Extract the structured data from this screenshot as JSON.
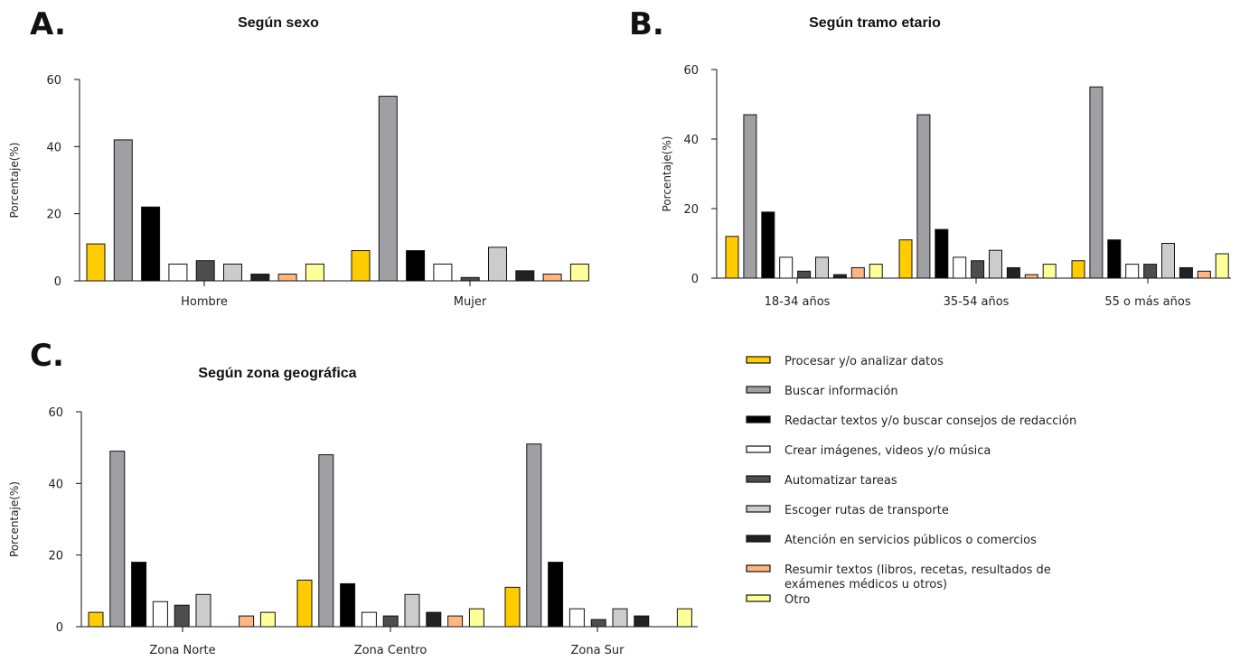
{
  "colors": {
    "Procesar y/o analizar datos": "#FFCC00",
    "Buscar información": "#A0A0A4",
    "Redactar textos y/o buscar consejos de redacción": "#000000",
    "Crear imágenes, videos y/o música": "#FFFFFF",
    "Automatizar tareas": "#4D4D4D",
    "Escoger rutas de transporte": "#CCCCCC",
    "Atención en servicios públicos o comercios": "#222222",
    "Resumir textos (libros, recetas, resultados de exámenes médicos u otros)": "#FFB680",
    "Otro": "#FFFF99"
  },
  "legend": {
    "items": [
      {
        "lines": [
          "Procesar y/o analizar datos"
        ]
      },
      {
        "lines": [
          "Buscar información"
        ]
      },
      {
        "lines": [
          "Redactar textos y/o buscar consejos de redacción"
        ]
      },
      {
        "lines": [
          "Crear imágenes, videos y/o música"
        ]
      },
      {
        "lines": [
          "Automatizar tareas"
        ]
      },
      {
        "lines": [
          "Escoger rutas de transporte"
        ]
      },
      {
        "lines": [
          "Atención en servicios públicos o comercios"
        ]
      },
      {
        "lines": [
          "Resumir textos (libros, recetas, resultados de",
          "exámenes médicos u otros)"
        ]
      },
      {
        "lines": [
          "Otro"
        ]
      }
    ]
  },
  "chart_data": [
    {
      "panel": "A.",
      "type": "bar",
      "title": "Según sexo",
      "ylabel": "Porcentaje(%)",
      "ylim": [
        0,
        60
      ],
      "yticks": [
        0,
        20,
        40,
        60
      ],
      "categories": [
        "Hombre",
        "Mujer"
      ],
      "series": [
        {
          "name": "Procesar y/o analizar datos",
          "values": [
            11,
            9
          ]
        },
        {
          "name": "Buscar información",
          "values": [
            42,
            55
          ]
        },
        {
          "name": "Redactar textos y/o buscar consejos de redacción",
          "values": [
            22,
            9
          ]
        },
        {
          "name": "Crear imágenes, videos y/o música",
          "values": [
            5,
            5
          ]
        },
        {
          "name": "Automatizar tareas",
          "values": [
            6,
            1
          ]
        },
        {
          "name": "Escoger rutas de transporte",
          "values": [
            5,
            10
          ]
        },
        {
          "name": "Atención en servicios públicos o comercios",
          "values": [
            2,
            3
          ]
        },
        {
          "name": "Resumir textos (libros, recetas, resultados de exámenes médicos u otros)",
          "values": [
            2,
            2
          ]
        },
        {
          "name": "Otro",
          "values": [
            5,
            5
          ]
        }
      ]
    },
    {
      "panel": "B.",
      "type": "bar",
      "title": "Según tramo etario",
      "ylabel": "Porcentaje(%)",
      "ylim": [
        0,
        60
      ],
      "yticks": [
        0,
        20,
        40,
        60
      ],
      "categories": [
        "18-34 años",
        "35-54 años",
        "55 o más años"
      ],
      "series": [
        {
          "name": "Procesar y/o analizar datos",
          "values": [
            12,
            11,
            5
          ]
        },
        {
          "name": "Buscar información",
          "values": [
            47,
            47,
            55
          ]
        },
        {
          "name": "Redactar textos y/o buscar consejos de redacción",
          "values": [
            19,
            14,
            11
          ]
        },
        {
          "name": "Crear imágenes, videos y/o música",
          "values": [
            6,
            6,
            4
          ]
        },
        {
          "name": "Automatizar tareas",
          "values": [
            2,
            5,
            4
          ]
        },
        {
          "name": "Escoger rutas de transporte",
          "values": [
            6,
            8,
            10
          ]
        },
        {
          "name": "Atención en servicios públicos o comercios",
          "values": [
            1,
            3,
            3
          ]
        },
        {
          "name": "Resumir textos (libros, recetas, resultados de exámenes médicos u otros)",
          "values": [
            3,
            1,
            2
          ]
        },
        {
          "name": "Otro",
          "values": [
            4,
            4,
            7
          ]
        }
      ]
    },
    {
      "panel": "C.",
      "type": "bar",
      "title": "Según zona geográfica",
      "ylabel": "Porcentaje(%)",
      "ylim": [
        0,
        60
      ],
      "yticks": [
        0,
        20,
        40,
        60
      ],
      "categories": [
        "Zona Norte",
        "Zona Centro",
        "Zona Sur"
      ],
      "series": [
        {
          "name": "Procesar y/o analizar datos",
          "values": [
            4,
            13,
            11
          ]
        },
        {
          "name": "Buscar información",
          "values": [
            49,
            48,
            51
          ]
        },
        {
          "name": "Redactar textos y/o buscar consejos de redacción",
          "values": [
            18,
            12,
            18
          ]
        },
        {
          "name": "Crear imágenes, videos y/o música",
          "values": [
            7,
            4,
            5
          ]
        },
        {
          "name": "Automatizar tareas",
          "values": [
            6,
            3,
            2
          ]
        },
        {
          "name": "Escoger rutas de transporte",
          "values": [
            9,
            9,
            5
          ]
        },
        {
          "name": "Atención en servicios públicos o comercios",
          "values": [
            0,
            4,
            3
          ]
        },
        {
          "name": "Resumir textos (libros, recetas, resultados de exámenes médicos u otros)",
          "values": [
            3,
            3,
            0
          ]
        },
        {
          "name": "Otro",
          "values": [
            4,
            5,
            5
          ]
        }
      ]
    }
  ]
}
